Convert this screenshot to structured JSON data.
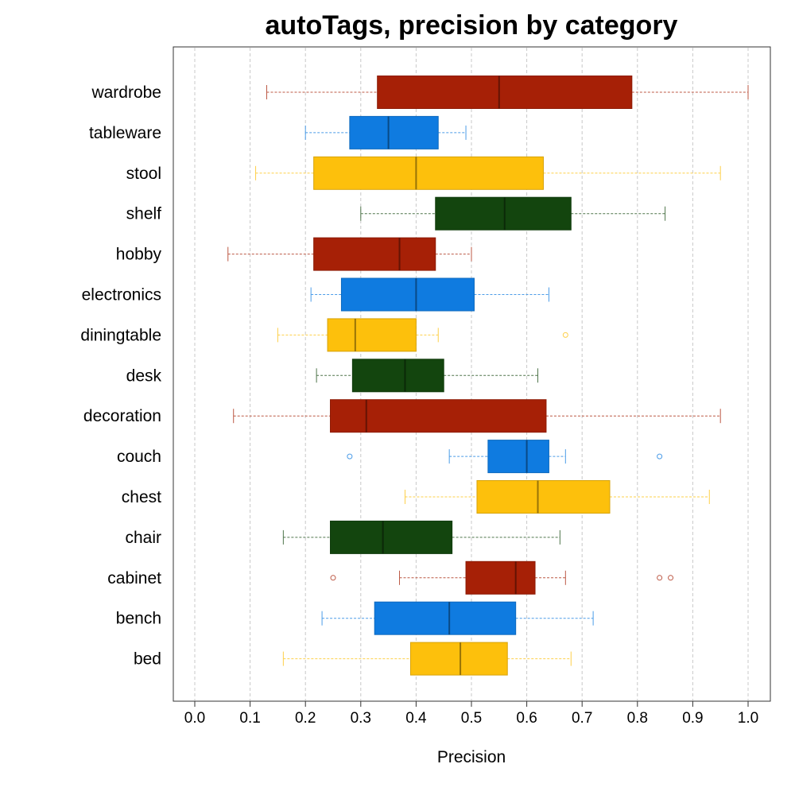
{
  "chart_data": {
    "type": "boxplot",
    "title": "autoTags, precision by category",
    "xlabel": "Precision",
    "xlim": [
      0.0,
      1.0
    ],
    "xticks": [
      "0.0",
      "0.1",
      "0.2",
      "0.3",
      "0.4",
      "0.5",
      "0.6",
      "0.7",
      "0.8",
      "0.9",
      "1.0"
    ],
    "orientation": "horizontal",
    "grid": "vertical dashed",
    "categories": [
      {
        "name": "wardrobe",
        "color": "#A62006",
        "whisker_low": 0.13,
        "q1": 0.33,
        "median": 0.55,
        "q3": 0.79,
        "whisker_high": 1.0,
        "outliers": []
      },
      {
        "name": "tableware",
        "color": "#0F7BE0",
        "whisker_low": 0.2,
        "q1": 0.28,
        "median": 0.35,
        "q3": 0.44,
        "whisker_high": 0.49,
        "outliers": []
      },
      {
        "name": "stool",
        "color": "#FDC00C",
        "whisker_low": 0.11,
        "q1": 0.215,
        "median": 0.4,
        "q3": 0.63,
        "whisker_high": 0.95,
        "outliers": []
      },
      {
        "name": "shelf",
        "color": "#13450E",
        "whisker_low": 0.3,
        "q1": 0.435,
        "median": 0.56,
        "q3": 0.68,
        "whisker_high": 0.85,
        "outliers": []
      },
      {
        "name": "hobby",
        "color": "#A62006",
        "whisker_low": 0.06,
        "q1": 0.215,
        "median": 0.37,
        "q3": 0.435,
        "whisker_high": 0.5,
        "outliers": []
      },
      {
        "name": "electronics",
        "color": "#0F7BE0",
        "whisker_low": 0.21,
        "q1": 0.265,
        "median": 0.4,
        "q3": 0.505,
        "whisker_high": 0.64,
        "outliers": []
      },
      {
        "name": "diningtable",
        "color": "#FDC00C",
        "whisker_low": 0.15,
        "q1": 0.24,
        "median": 0.29,
        "q3": 0.4,
        "whisker_high": 0.44,
        "outliers": [
          0.67
        ]
      },
      {
        "name": "desk",
        "color": "#13450E",
        "whisker_low": 0.22,
        "q1": 0.285,
        "median": 0.38,
        "q3": 0.45,
        "whisker_high": 0.62,
        "outliers": []
      },
      {
        "name": "decoration",
        "color": "#A62006",
        "whisker_low": 0.07,
        "q1": 0.245,
        "median": 0.31,
        "q3": 0.635,
        "whisker_high": 0.95,
        "outliers": []
      },
      {
        "name": "couch",
        "color": "#0F7BE0",
        "whisker_low": 0.46,
        "q1": 0.53,
        "median": 0.6,
        "q3": 0.64,
        "whisker_high": 0.67,
        "outliers": [
          0.28,
          0.84
        ]
      },
      {
        "name": "chest",
        "color": "#FDC00C",
        "whisker_low": 0.38,
        "q1": 0.51,
        "median": 0.62,
        "q3": 0.75,
        "whisker_high": 0.93,
        "outliers": []
      },
      {
        "name": "chair",
        "color": "#13450E",
        "whisker_low": 0.16,
        "q1": 0.245,
        "median": 0.34,
        "q3": 0.465,
        "whisker_high": 0.66,
        "outliers": []
      },
      {
        "name": "cabinet",
        "color": "#A62006",
        "whisker_low": 0.37,
        "q1": 0.49,
        "median": 0.58,
        "q3": 0.615,
        "whisker_high": 0.67,
        "outliers": [
          0.25,
          0.84,
          0.86
        ]
      },
      {
        "name": "bench",
        "color": "#0F7BE0",
        "whisker_low": 0.23,
        "q1": 0.325,
        "median": 0.46,
        "q3": 0.58,
        "whisker_high": 0.72,
        "outliers": []
      },
      {
        "name": "bed",
        "color": "#FDC00C",
        "whisker_low": 0.16,
        "q1": 0.39,
        "median": 0.48,
        "q3": 0.565,
        "whisker_high": 0.68,
        "outliers": []
      }
    ]
  }
}
